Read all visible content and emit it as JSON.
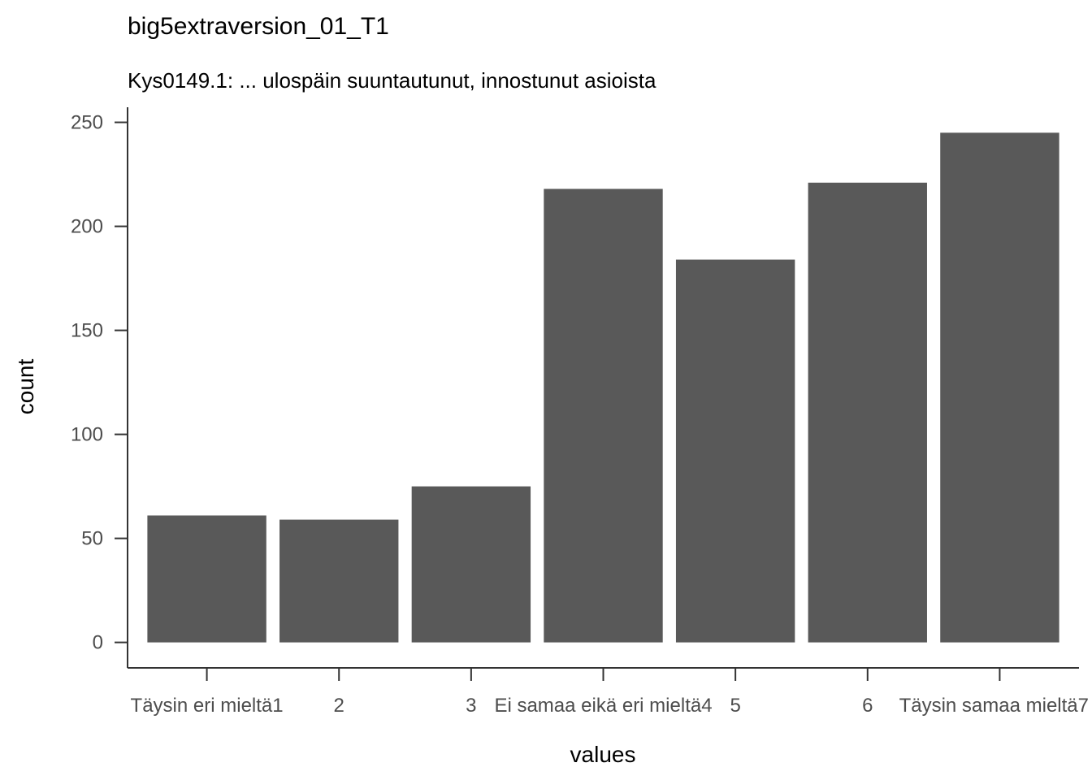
{
  "chart_data": {
    "type": "bar",
    "title": "big5extraversion_01_T1",
    "subtitle": "Kys0149.1: ... ulospäin suuntautunut, innostunut asioista",
    "xlabel": "values",
    "ylabel": "count",
    "categories": [
      "1",
      "2",
      "3",
      "4",
      "5",
      "6",
      "7"
    ],
    "category_labels": [
      "Täysin eri mieltä1",
      "2",
      "3",
      "Ei samaa eikä eri mieltä4",
      "5",
      "6",
      "Täysin samaa mieltä7"
    ],
    "values": [
      61,
      59,
      75,
      218,
      184,
      221,
      245
    ],
    "ylim": [
      -12.25,
      257.25
    ],
    "yticks": [
      0,
      50,
      100,
      150,
      200,
      250
    ],
    "bar_color": "#595959",
    "grid": false,
    "legend": "none"
  }
}
